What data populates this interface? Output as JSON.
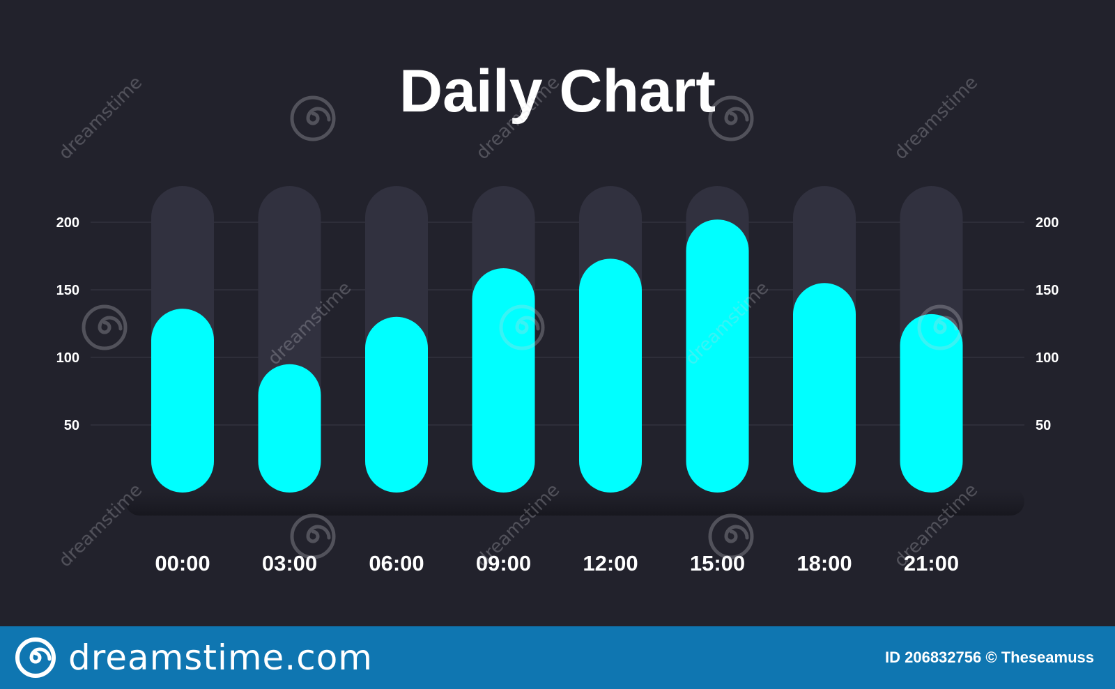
{
  "colors": {
    "background": "#22222c",
    "track": "#31313f",
    "bar": "#00ffff",
    "text": "#ffffff",
    "grid": "#3a3a46",
    "footer": "#0f76b1"
  },
  "chart_data": {
    "type": "bar",
    "title": "Daily Chart",
    "categories": [
      "00:00",
      "03:00",
      "06:00",
      "09:00",
      "12:00",
      "15:00",
      "18:00",
      "21:00"
    ],
    "values": [
      136,
      95,
      130,
      166,
      173,
      202,
      155,
      132
    ],
    "xlabel": "",
    "ylabel": "",
    "ylim": [
      0,
      200
    ],
    "yticks": [
      50,
      100,
      150,
      200
    ],
    "grid": true,
    "legend": "none",
    "y_axis_sides": [
      "left",
      "right"
    ]
  },
  "watermark": {
    "text": "dreamstime",
    "icon": "spiral-icon"
  },
  "footer": {
    "brand": "dreamstime.com",
    "logo_icon": "spiral-icon",
    "id_label": "ID",
    "id_number": "206832756",
    "copyright_symbol": "©",
    "author": "Theseamuss"
  }
}
